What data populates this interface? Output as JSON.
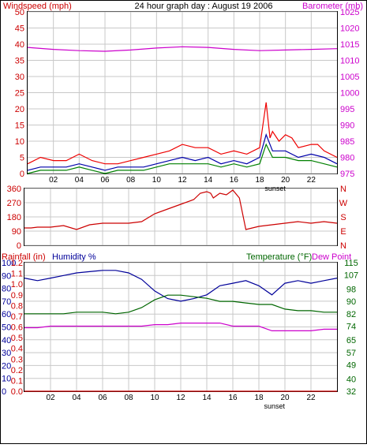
{
  "header": {
    "left_title": "Windspeed (mph)",
    "center_title": "24 hour graph day : August 19 2006",
    "right_title": "Barometer (mb)"
  },
  "colors": {
    "frame": "#000000",
    "grid": "#c8c8c8",
    "windspeed": "#cc0000",
    "gust": "#ee0000",
    "avg_speed": "#0000aa",
    "min_speed": "#008000",
    "barometer": "#cc00cc",
    "direction": "#cc0000",
    "rainfall": "#cc0000",
    "humidity": "#000099",
    "temperature": "#006600",
    "dew_point": "#cc00cc",
    "dew_label": "#cc00cc"
  },
  "hour_ticks": [
    "02",
    "04",
    "06",
    "08",
    "10",
    "12",
    "14",
    "16",
    "18",
    "20",
    "22"
  ],
  "sunset_label": "sunset",
  "chart_data": [
    {
      "type": "line",
      "title": "24 hour graph day : August 19 2006",
      "left_axis": {
        "label": "Windspeed (mph)",
        "range": [
          0,
          50
        ],
        "ticks": [
          0,
          5,
          10,
          15,
          20,
          25,
          30,
          35,
          40,
          45,
          50
        ]
      },
      "right_axis": {
        "label": "Barometer (mb)",
        "range": [
          975,
          1025
        ],
        "ticks": [
          975,
          980,
          985,
          990,
          995,
          1000,
          1005,
          1010,
          1015,
          1020,
          1025
        ]
      },
      "x_range": [
        0,
        24
      ],
      "grid": true,
      "series": [
        {
          "name": "Barometer",
          "axis": "right",
          "x": [
            0,
            2,
            4,
            6,
            8,
            10,
            12,
            14,
            16,
            18,
            20,
            22,
            24
          ],
          "y": [
            1014,
            1013.4,
            1013,
            1012.8,
            1013.2,
            1013.8,
            1014.2,
            1014,
            1013.4,
            1013,
            1013.2,
            1013.4,
            1013.6
          ]
        },
        {
          "name": "Gust",
          "axis": "left",
          "x": [
            0,
            1,
            2,
            3,
            4,
            5,
            6,
            7,
            8,
            9,
            10,
            11,
            12,
            13,
            14,
            15,
            16,
            17,
            18,
            18.5,
            18.8,
            19,
            19.5,
            20,
            20.5,
            21,
            22,
            22.5,
            23,
            24
          ],
          "y": [
            3,
            5,
            4,
            4,
            6,
            4,
            3,
            3,
            4,
            5,
            6,
            7,
            9,
            8,
            8,
            6,
            7,
            6,
            8,
            22,
            11,
            13,
            10,
            12,
            11,
            8,
            9,
            9,
            7,
            5
          ]
        },
        {
          "name": "Average",
          "axis": "left",
          "x": [
            0,
            1,
            2,
            3,
            4,
            5,
            6,
            7,
            8,
            9,
            10,
            11,
            12,
            13,
            14,
            15,
            16,
            17,
            18,
            18.5,
            19,
            20,
            21,
            22,
            23,
            24
          ],
          "y": [
            1,
            2,
            2,
            2,
            3,
            2,
            1,
            2,
            2,
            2,
            3,
            4,
            5,
            4,
            5,
            3,
            4,
            3,
            5,
            12,
            7,
            7,
            5,
            6,
            5,
            3
          ]
        },
        {
          "name": "Minimum",
          "axis": "left",
          "x": [
            0,
            1,
            2,
            3,
            4,
            5,
            6,
            7,
            8,
            9,
            10,
            11,
            12,
            13,
            14,
            15,
            16,
            17,
            18,
            18.5,
            19,
            20,
            21,
            22,
            23,
            24
          ],
          "y": [
            0,
            1,
            1,
            1,
            2,
            1,
            0,
            1,
            1,
            1,
            2,
            3,
            3,
            3,
            3,
            2,
            3,
            2,
            3,
            9,
            5,
            5,
            4,
            4,
            3,
            2
          ]
        }
      ]
    },
    {
      "type": "line",
      "left_axis": {
        "range": [
          0,
          360
        ],
        "ticks": [
          0,
          90,
          180,
          270,
          360
        ]
      },
      "right_axis_labels": [
        "N",
        "W",
        "S",
        "E",
        "N"
      ],
      "x_range": [
        0,
        24
      ],
      "grid": true,
      "series": [
        {
          "name": "Wind direction",
          "x": [
            0,
            0.5,
            1,
            2,
            3,
            4,
            5,
            6,
            7,
            8,
            9,
            10,
            11,
            12,
            13,
            13.5,
            14,
            14.3,
            14.5,
            15,
            15.5,
            16,
            16.5,
            17,
            18,
            19,
            20,
            21,
            22,
            23,
            24
          ],
          "y": [
            110,
            110,
            115,
            115,
            125,
            100,
            130,
            140,
            140,
            140,
            150,
            200,
            230,
            260,
            290,
            330,
            340,
            330,
            300,
            330,
            320,
            350,
            300,
            100,
            120,
            130,
            140,
            150,
            140,
            150,
            140
          ]
        }
      ]
    },
    {
      "type": "line",
      "x_range": [
        0,
        24
      ],
      "grid": true,
      "axes": {
        "rainfall": {
          "label": "Rainfall (in)",
          "range": [
            0,
            1.2
          ],
          "ticks": [
            0.0,
            0.1,
            0.2,
            0.3,
            0.4,
            0.5,
            0.6,
            0.7,
            0.8,
            0.9,
            1.0,
            1.1,
            1.2
          ]
        },
        "humidity": {
          "label": "Humidity %",
          "range": [
            0,
            100
          ],
          "ticks": [
            0,
            10,
            20,
            30,
            40,
            50,
            60,
            70,
            80,
            90,
            100
          ]
        },
        "temperature": {
          "label": "Temperature (°F)",
          "range": [
            32,
            115
          ],
          "ticks": [
            32,
            40,
            49,
            57,
            65,
            74,
            82,
            90,
            98,
            107,
            115
          ]
        },
        "dew_point": {
          "label": "Dew Point"
        }
      },
      "series": [
        {
          "name": "Humidity",
          "axis": "humidity",
          "x": [
            0,
            1,
            2,
            3,
            4,
            5,
            6,
            7,
            8,
            9,
            10,
            11,
            12,
            13,
            14,
            15,
            16,
            17,
            18,
            19,
            20,
            21,
            22,
            23,
            24
          ],
          "y": [
            88,
            86,
            88,
            90,
            92,
            93,
            94,
            94,
            92,
            87,
            78,
            72,
            70,
            72,
            75,
            82,
            84,
            86,
            82,
            75,
            84,
            86,
            84,
            86,
            88
          ]
        },
        {
          "name": "Temperature",
          "axis": "temperature",
          "x": [
            0,
            1,
            2,
            3,
            4,
            5,
            6,
            7,
            8,
            9,
            10,
            11,
            12,
            13,
            14,
            15,
            16,
            17,
            18,
            19,
            20,
            21,
            22,
            23,
            24
          ],
          "y": [
            82,
            82,
            82,
            82,
            83,
            83,
            83,
            82,
            83,
            86,
            91,
            94,
            94,
            93,
            92,
            90,
            90,
            89,
            88,
            88,
            85,
            84,
            84,
            83,
            83
          ]
        },
        {
          "name": "Dew Point",
          "axis": "temperature",
          "x": [
            0,
            1,
            2,
            3,
            4,
            5,
            6,
            7,
            8,
            9,
            10,
            11,
            12,
            13,
            14,
            15,
            16,
            17,
            18,
            19,
            20,
            21,
            22,
            23,
            24
          ],
          "y": [
            73,
            73,
            74,
            74,
            74,
            74,
            74,
            74,
            74,
            74,
            75,
            75,
            76,
            76,
            76,
            76,
            74,
            74,
            74,
            71,
            71,
            71,
            71,
            72,
            72
          ]
        },
        {
          "name": "Rainfall",
          "axis": "rainfall",
          "x": [
            0,
            24
          ],
          "y": [
            0,
            0
          ]
        }
      ]
    }
  ]
}
